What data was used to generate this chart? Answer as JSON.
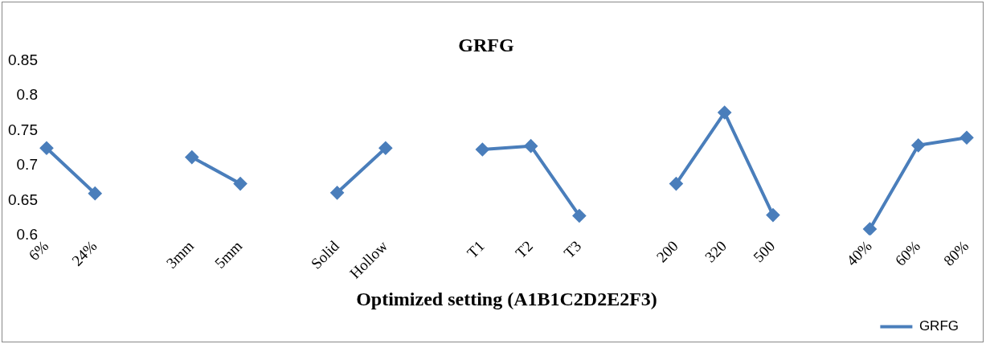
{
  "chart_data": {
    "type": "line",
    "title": "GRFG",
    "xlabel": "Optimized setting (A1B1C2D2E2F3)",
    "categories": [
      "6%",
      "24%",
      null,
      "3mm",
      "5mm",
      null,
      "Solid",
      "Hollow",
      null,
      "T1",
      "T2",
      "T3",
      null,
      "200",
      "320",
      "500",
      null,
      "40%",
      "60%",
      "80%"
    ],
    "series": [
      {
        "name": "GRFG",
        "color": "#4a7ebb",
        "values": [
          0.725,
          0.66,
          null,
          0.712,
          0.674,
          null,
          0.661,
          0.725,
          null,
          0.723,
          0.728,
          0.628,
          null,
          0.674,
          0.776,
          0.629,
          null,
          0.609,
          0.729,
          0.74
        ]
      }
    ],
    "ylim": [
      0.6,
      0.85
    ],
    "yticks": [
      0.6,
      0.65,
      0.7,
      0.75,
      0.8,
      0.85
    ],
    "grid": false,
    "legend": "bottom right",
    "marker": "diamond",
    "line_style": "solid"
  }
}
